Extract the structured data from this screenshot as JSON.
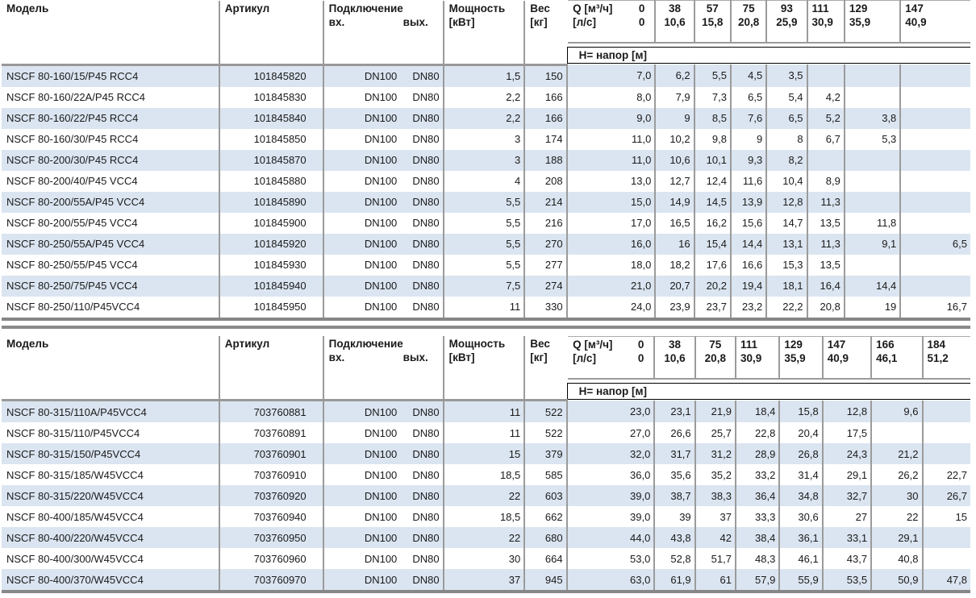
{
  "headers": {
    "model": "Модель",
    "article": "Артикул",
    "connection": "Подключение",
    "conn_in": "вх.",
    "conn_out": "вых.",
    "power_l1": "Мощность",
    "power_l2": "[кВт]",
    "weight_l1": "Вес",
    "weight_l2": "[кг]",
    "q_l1": "Q [м³/ч]",
    "q_l1_zero": "0",
    "q_l2": "[л/с]",
    "q_l2_zero": "0",
    "head_band": "H= напор [м]"
  },
  "tables": [
    {
      "q_cols": [
        {
          "m3h": "38",
          "ls": "10,6"
        },
        {
          "m3h": "57",
          "ls": "15,8"
        },
        {
          "m3h": "75",
          "ls": "20,8"
        },
        {
          "m3h": "93",
          "ls": "25,9"
        },
        {
          "m3h": "111",
          "ls": "30,9"
        },
        {
          "m3h": "129",
          "ls": "35,9"
        },
        {
          "m3h": "147",
          "ls": "40,9"
        }
      ],
      "rows": [
        {
          "model": "NSCF 80-160/15/P45 RCC4",
          "article": "101845820",
          "in": "DN100",
          "out": "DN80",
          "power": "1,5",
          "weight": "150",
          "heads": [
            "7,0",
            "6,2",
            "5,5",
            "4,5",
            "3,5",
            "",
            "",
            ""
          ]
        },
        {
          "model": "NSCF 80-160/22A/P45 RCC4",
          "article": "101845830",
          "in": "DN100",
          "out": "DN80",
          "power": "2,2",
          "weight": "166",
          "heads": [
            "8,0",
            "7,9",
            "7,3",
            "6,5",
            "5,4",
            "4,2",
            "",
            ""
          ]
        },
        {
          "model": "NSCF 80-160/22/P45 RCC4",
          "article": "101845840",
          "in": "DN100",
          "out": "DN80",
          "power": "2,2",
          "weight": "166",
          "heads": [
            "9,0",
            "9",
            "8,5",
            "7,6",
            "6,5",
            "5,2",
            "3,8",
            ""
          ]
        },
        {
          "model": "NSCF 80-160/30/P45 RCC4",
          "article": "101845850",
          "in": "DN100",
          "out": "DN80",
          "power": "3",
          "weight": "174",
          "heads": [
            "11,0",
            "10,2",
            "9,8",
            "9",
            "8",
            "6,7",
            "5,3",
            ""
          ]
        },
        {
          "model": "NSCF 80-200/30/P45 RCC4",
          "article": "101845870",
          "in": "DN100",
          "out": "DN80",
          "power": "3",
          "weight": "188",
          "heads": [
            "11,0",
            "10,6",
            "10,1",
            "9,3",
            "8,2",
            "",
            "",
            ""
          ]
        },
        {
          "model": "NSCF 80-200/40/P45 VCC4",
          "article": "101845880",
          "in": "DN100",
          "out": "DN80",
          "power": "4",
          "weight": "208",
          "heads": [
            "13,0",
            "12,7",
            "12,4",
            "11,6",
            "10,4",
            "8,9",
            "",
            ""
          ]
        },
        {
          "model": "NSCF 80-200/55A/P45 VCC4",
          "article": "101845890",
          "in": "DN100",
          "out": "DN80",
          "power": "5,5",
          "weight": "214",
          "heads": [
            "15,0",
            "14,9",
            "14,5",
            "13,9",
            "12,8",
            "11,3",
            "",
            ""
          ]
        },
        {
          "model": "NSCF 80-200/55/P45 VCC4",
          "article": "101845900",
          "in": "DN100",
          "out": "DN80",
          "power": "5,5",
          "weight": "216",
          "heads": [
            "17,0",
            "16,5",
            "16,2",
            "15,6",
            "14,7",
            "13,5",
            "11,8",
            ""
          ]
        },
        {
          "model": "NSCF 80-250/55A/P45 VCC4",
          "article": "101845920",
          "in": "DN100",
          "out": "DN80",
          "power": "5,5",
          "weight": "270",
          "heads": [
            "16,0",
            "16",
            "15,4",
            "14,4",
            "13,1",
            "11,3",
            "9,1",
            "6,5"
          ]
        },
        {
          "model": "NSCF 80-250/55/P45 VCC4",
          "article": "101845930",
          "in": "DN100",
          "out": "DN80",
          "power": "5,5",
          "weight": "277",
          "heads": [
            "18,0",
            "18,2",
            "17,6",
            "16,6",
            "15,3",
            "13,5",
            "",
            ""
          ]
        },
        {
          "model": "NSCF 80-250/75/P45 VCC4",
          "article": "101845940",
          "in": "DN100",
          "out": "DN80",
          "power": "7,5",
          "weight": "274",
          "heads": [
            "21,0",
            "20,7",
            "20,2",
            "19,4",
            "18,1",
            "16,4",
            "14,4",
            ""
          ]
        },
        {
          "model": "NSCF 80-250/110/P45VCC4",
          "article": "101845950",
          "in": "DN100",
          "out": "DN80",
          "power": "11",
          "weight": "330",
          "heads": [
            "24,0",
            "23,9",
            "23,7",
            "23,2",
            "22,2",
            "20,8",
            "19",
            "16,7"
          ]
        }
      ]
    },
    {
      "q_cols": [
        {
          "m3h": "38",
          "ls": "10,6"
        },
        {
          "m3h": "75",
          "ls": "20,8"
        },
        {
          "m3h": "111",
          "ls": "30,9"
        },
        {
          "m3h": "129",
          "ls": "35,9"
        },
        {
          "m3h": "147",
          "ls": "40,9"
        },
        {
          "m3h": "166",
          "ls": "46,1"
        },
        {
          "m3h": "184",
          "ls": "51,2"
        }
      ],
      "rows": [
        {
          "model": "NSCF 80-315/110A/P45VCC4",
          "article": "703760881",
          "in": "DN100",
          "out": "DN80",
          "power": "11",
          "weight": "522",
          "heads": [
            "23,0",
            "23,1",
            "21,9",
            "18,4",
            "15,8",
            "12,8",
            "9,6",
            ""
          ]
        },
        {
          "model": "NSCF 80-315/110/P45VCC4",
          "article": "703760891",
          "in": "DN100",
          "out": "DN80",
          "power": "11",
          "weight": "522",
          "heads": [
            "27,0",
            "26,6",
            "25,7",
            "22,8",
            "20,4",
            "17,5",
            "",
            ""
          ]
        },
        {
          "model": "NSCF 80-315/150/P45VCC4",
          "article": "703760901",
          "in": "DN100",
          "out": "DN80",
          "power": "15",
          "weight": "379",
          "heads": [
            "32,0",
            "31,7",
            "31,2",
            "28,9",
            "26,8",
            "24,3",
            "21,2",
            ""
          ]
        },
        {
          "model": "NSCF 80-315/185/W45VCC4",
          "article": "703760910",
          "in": "DN100",
          "out": "DN80",
          "power": "18,5",
          "weight": "585",
          "heads": [
            "36,0",
            "35,6",
            "35,2",
            "33,2",
            "31,4",
            "29,1",
            "26,2",
            "22,7"
          ]
        },
        {
          "model": "NSCF 80-315/220/W45VCC4",
          "article": "703760920",
          "in": "DN100",
          "out": "DN80",
          "power": "22",
          "weight": "603",
          "heads": [
            "39,0",
            "38,7",
            "38,3",
            "36,4",
            "34,8",
            "32,7",
            "30",
            "26,7"
          ]
        },
        {
          "model": "NSCF 80-400/185/W45VCC4",
          "article": "703760940",
          "in": "DN100",
          "out": "DN80",
          "power": "18,5",
          "weight": "662",
          "heads": [
            "39,0",
            "39",
            "37",
            "33,3",
            "30,6",
            "27",
            "22",
            "15"
          ]
        },
        {
          "model": "NSCF 80-400/220/W45VCC4",
          "article": "703760950",
          "in": "DN100",
          "out": "DN80",
          "power": "22",
          "weight": "680",
          "heads": [
            "44,0",
            "43,8",
            "42",
            "38,4",
            "36,1",
            "33,1",
            "29,1",
            ""
          ]
        },
        {
          "model": "NSCF 80-400/300/W45VCC4",
          "article": "703760960",
          "in": "DN100",
          "out": "DN80",
          "power": "30",
          "weight": "664",
          "heads": [
            "53,0",
            "52,8",
            "51,7",
            "48,3",
            "46,1",
            "43,7",
            "40,8",
            ""
          ]
        },
        {
          "model": "NSCF 80-400/370/W45VCC4",
          "article": "703760970",
          "in": "DN100",
          "out": "DN80",
          "power": "37",
          "weight": "945",
          "heads": [
            "63,0",
            "61,9",
            "61",
            "57,9",
            "55,9",
            "53,5",
            "50,9",
            "47,8"
          ]
        }
      ]
    }
  ]
}
